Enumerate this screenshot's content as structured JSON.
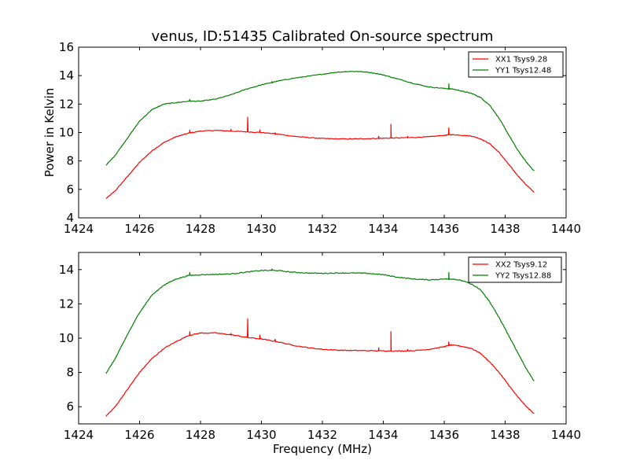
{
  "figure": {
    "title": "venus, ID:51435 Calibrated On-source spectrum",
    "xlabel": "Frequency (MHz)",
    "ylabel": "Power in Kelvin"
  },
  "colors": {
    "xx": "#ff0000",
    "yy": "#008000"
  },
  "chart_data": [
    {
      "type": "line",
      "title": "venus, ID:51435 Calibrated On-source spectrum",
      "xlabel": "",
      "ylabel": "Power in Kelvin",
      "xlim": [
        1424,
        1440
      ],
      "ylim": [
        4,
        16
      ],
      "xticks": [
        1424,
        1426,
        1428,
        1430,
        1432,
        1434,
        1436,
        1438,
        1440
      ],
      "yticks": [
        4,
        6,
        8,
        10,
        12,
        14,
        16
      ],
      "legend_position": "top-right",
      "series": [
        {
          "name": "XX1 Tsys9.28",
          "color": "#ff0000",
          "x": [
            1424.9,
            1425.2,
            1425.6,
            1426.0,
            1426.4,
            1426.8,
            1427.2,
            1427.6,
            1428.0,
            1428.5,
            1429.0,
            1429.5,
            1430.0,
            1430.5,
            1431.0,
            1431.5,
            1432.0,
            1432.5,
            1433.0,
            1433.5,
            1434.0,
            1434.5,
            1435.0,
            1435.5,
            1436.0,
            1436.2,
            1436.5,
            1436.9,
            1437.2,
            1437.5,
            1437.8,
            1438.1,
            1438.4,
            1438.7,
            1438.95
          ],
          "y": [
            5.35,
            5.9,
            6.9,
            7.9,
            8.7,
            9.3,
            9.7,
            9.95,
            10.1,
            10.15,
            10.1,
            10.05,
            10.0,
            9.9,
            9.75,
            9.65,
            9.58,
            9.55,
            9.55,
            9.57,
            9.6,
            9.62,
            9.65,
            9.7,
            9.8,
            9.85,
            9.82,
            9.75,
            9.55,
            9.2,
            8.6,
            7.8,
            7.0,
            6.3,
            5.8
          ],
          "spikes": [
            {
              "x": 1427.65,
              "y": 10.2
            },
            {
              "x": 1429.0,
              "y": 10.25
            },
            {
              "x": 1429.55,
              "y": 11.1
            },
            {
              "x": 1429.95,
              "y": 10.2
            },
            {
              "x": 1430.45,
              "y": 10.0
            },
            {
              "x": 1433.85,
              "y": 9.75
            },
            {
              "x": 1434.25,
              "y": 10.6
            },
            {
              "x": 1434.8,
              "y": 9.75
            },
            {
              "x": 1436.15,
              "y": 10.35
            }
          ]
        },
        {
          "name": "YY1 Tsys12.48",
          "color": "#008000",
          "x": [
            1424.9,
            1425.2,
            1425.6,
            1426.0,
            1426.4,
            1426.8,
            1427.2,
            1427.6,
            1428.0,
            1428.5,
            1429.0,
            1429.5,
            1430.0,
            1430.5,
            1431.0,
            1431.5,
            1432.0,
            1432.5,
            1433.0,
            1433.5,
            1434.0,
            1434.5,
            1435.0,
            1435.5,
            1436.0,
            1436.3,
            1436.6,
            1436.9,
            1437.2,
            1437.5,
            1437.8,
            1438.1,
            1438.4,
            1438.7,
            1438.95
          ],
          "y": [
            7.7,
            8.4,
            9.6,
            10.8,
            11.6,
            12.0,
            12.1,
            12.2,
            12.2,
            12.35,
            12.65,
            13.05,
            13.35,
            13.6,
            13.8,
            13.95,
            14.1,
            14.25,
            14.3,
            14.25,
            14.05,
            13.75,
            13.45,
            13.2,
            13.1,
            13.05,
            12.9,
            12.75,
            12.45,
            11.9,
            11.0,
            9.9,
            8.8,
            7.9,
            7.3
          ],
          "spikes": [
            {
              "x": 1427.65,
              "y": 12.35
            },
            {
              "x": 1430.35,
              "y": 13.6
            },
            {
              "x": 1436.15,
              "y": 13.45
            }
          ]
        }
      ]
    },
    {
      "type": "line",
      "title": "",
      "xlabel": "Frequency (MHz)",
      "ylabel": "",
      "xlim": [
        1424,
        1440
      ],
      "ylim": [
        5,
        15
      ],
      "xticks": [
        1424,
        1426,
        1428,
        1430,
        1432,
        1434,
        1436,
        1438,
        1440
      ],
      "yticks": [
        6,
        8,
        10,
        12,
        14
      ],
      "legend_position": "top-right",
      "series": [
        {
          "name": "XX2 Tsys9.12",
          "color": "#ff0000",
          "x": [
            1424.9,
            1425.2,
            1425.6,
            1426.0,
            1426.4,
            1426.8,
            1427.2,
            1427.6,
            1428.0,
            1428.5,
            1429.0,
            1429.5,
            1430.0,
            1430.5,
            1431.0,
            1431.5,
            1432.0,
            1432.5,
            1433.0,
            1433.5,
            1434.0,
            1434.5,
            1435.0,
            1435.5,
            1436.0,
            1436.2,
            1436.5,
            1436.9,
            1437.2,
            1437.5,
            1437.8,
            1438.1,
            1438.4,
            1438.7,
            1438.95
          ],
          "y": [
            5.45,
            6.0,
            7.0,
            8.0,
            8.8,
            9.4,
            9.8,
            10.15,
            10.3,
            10.3,
            10.2,
            10.05,
            9.95,
            9.8,
            9.6,
            9.45,
            9.35,
            9.3,
            9.28,
            9.27,
            9.26,
            9.25,
            9.27,
            9.35,
            9.5,
            9.6,
            9.55,
            9.4,
            9.1,
            8.6,
            8.0,
            7.3,
            6.6,
            6.0,
            5.6
          ],
          "spikes": [
            {
              "x": 1427.65,
              "y": 10.4
            },
            {
              "x": 1429.0,
              "y": 10.3
            },
            {
              "x": 1429.55,
              "y": 11.15
            },
            {
              "x": 1429.95,
              "y": 10.2
            },
            {
              "x": 1430.45,
              "y": 9.95
            },
            {
              "x": 1433.85,
              "y": 9.45
            },
            {
              "x": 1434.25,
              "y": 10.4
            },
            {
              "x": 1434.8,
              "y": 9.35
            },
            {
              "x": 1436.15,
              "y": 9.8
            }
          ]
        },
        {
          "name": "YY2 Tsys12.88",
          "color": "#008000",
          "x": [
            1424.9,
            1425.2,
            1425.6,
            1426.0,
            1426.4,
            1426.8,
            1427.2,
            1427.6,
            1428.0,
            1428.5,
            1429.0,
            1429.5,
            1430.0,
            1430.5,
            1431.0,
            1431.5,
            1432.0,
            1432.5,
            1433.0,
            1433.5,
            1434.0,
            1434.5,
            1435.0,
            1435.5,
            1436.0,
            1436.3,
            1436.6,
            1436.9,
            1437.2,
            1437.5,
            1437.8,
            1438.1,
            1438.4,
            1438.7,
            1438.95
          ],
          "y": [
            7.95,
            8.8,
            10.2,
            11.5,
            12.5,
            13.1,
            13.45,
            13.65,
            13.7,
            13.72,
            13.75,
            13.85,
            13.95,
            13.95,
            13.85,
            13.8,
            13.78,
            13.8,
            13.8,
            13.78,
            13.7,
            13.55,
            13.45,
            13.4,
            13.45,
            13.45,
            13.35,
            13.15,
            12.8,
            12.1,
            11.2,
            10.2,
            9.2,
            8.2,
            7.5
          ],
          "spikes": [
            {
              "x": 1427.65,
              "y": 13.85
            },
            {
              "x": 1430.35,
              "y": 14.05
            },
            {
              "x": 1436.15,
              "y": 13.85
            }
          ]
        }
      ]
    }
  ]
}
